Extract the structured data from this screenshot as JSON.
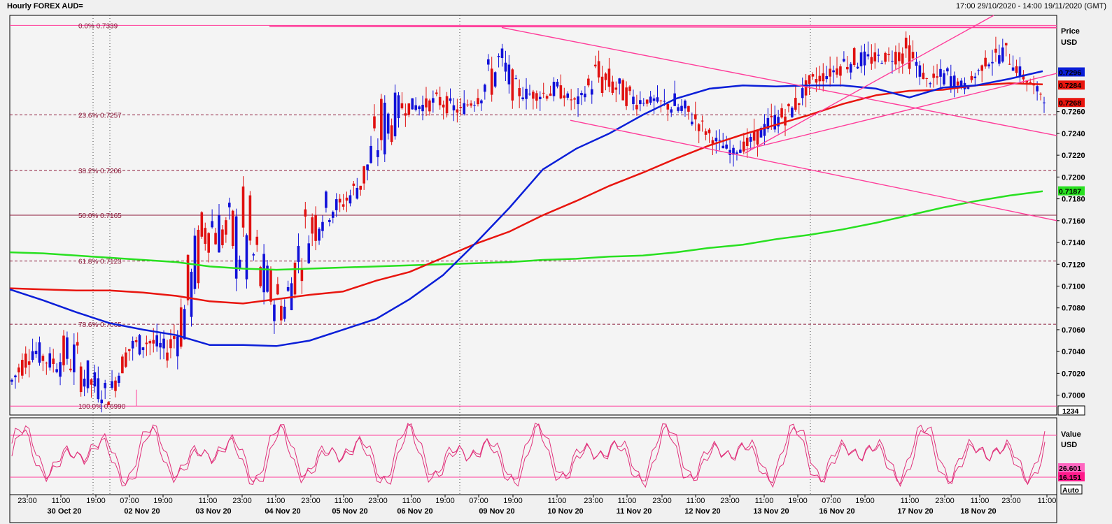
{
  "window": {
    "title": "Hourly FOREX AUD=",
    "range": "17:00 29/10/2020 - 14:00 19/11/2020 (GMT)"
  },
  "price_panel": {
    "header": [
      "Price",
      "USD"
    ]
  },
  "indicator_panel": {
    "header": [
      "Value",
      "USD"
    ]
  },
  "colors": {
    "up": "#1010d8",
    "down": "#e01010",
    "ma_fast": "#0a1ed8",
    "ma_mid": "#e8150e",
    "ma_slow": "#28e020",
    "fib": "#8b1a3a",
    "trend": "#ff3d9a",
    "stoch": "#e0307a"
  },
  "chart_data": [
    {
      "type": "candlestick",
      "ylim": [
        0.6985,
        0.7345
      ],
      "ytick_labels": [
        "0.7000",
        "0.7020",
        "0.7040",
        "0.7060",
        "0.7080",
        "0.7100",
        "0.7120",
        "0.7140",
        "0.7160",
        "0.7180",
        "0.7200",
        "0.7220",
        "0.7240",
        "0.7260"
      ],
      "x_time_labels": [
        "23:00",
        "11:00",
        "19:00",
        "07:00",
        "19:00",
        "11:00",
        "23:00",
        "11:00",
        "23:00",
        "11:00",
        "23:00",
        "11:00",
        "19:00",
        "07:00",
        "19:00",
        "11:00",
        "23:00",
        "11:00",
        "23:00",
        "11:00",
        "23:00",
        "11:00",
        "19:00",
        "07:00",
        "19:00",
        "11:00",
        "23:00",
        "11:00",
        "23:00",
        "11:00"
      ],
      "x_date_labels": [
        "30 Oct 20",
        "02 Nov 20",
        "03 Nov 20",
        "04 Nov 20",
        "05 Nov 20",
        "06 Nov 20",
        "09 Nov 20",
        "10 Nov 20",
        "11 Nov 20",
        "12 Nov 20",
        "13 Nov 20",
        "16 Nov 20",
        "17 Nov 20",
        "18 Nov 20"
      ],
      "fib_levels": [
        {
          "label": "0.0%  0.7339",
          "value": 0.7339
        },
        {
          "label": "23.6%  0.7257",
          "value": 0.7257
        },
        {
          "label": "38.2%  0.7206",
          "value": 0.7206
        },
        {
          "label": "50.0%  0.7165",
          "value": 0.7165
        },
        {
          "label": "61.8%  0.7123",
          "value": 0.7123
        },
        {
          "label": "78.6%  0.7065",
          "value": 0.7065
        },
        {
          "label": "100.0%  0.6990",
          "value": 0.699
        }
      ],
      "value_tags": [
        {
          "text": "0.7296",
          "value": 0.7296,
          "color": "#0a1ed8"
        },
        {
          "text": "0.7284",
          "value": 0.7284,
          "color": "#e8150e"
        },
        {
          "text": "0.7268",
          "value": 0.7268,
          "color": "#e8150e"
        },
        {
          "text": "0.7187",
          "value": 0.7187,
          "color": "#28e020"
        }
      ],
      "close_label": "1234",
      "key_points": [
        [
          0.7025,
          0.7
        ],
        [
          0.7055,
          0.703
        ],
        [
          0.704,
          0.702
        ],
        [
          0.7065,
          0.701
        ],
        [
          0.703,
          0.6995
        ],
        [
          0.701,
          0.699
        ],
        [
          0.7055,
          0.703
        ],
        [
          0.706,
          0.704
        ],
        [
          0.705,
          0.703
        ],
        [
          0.713,
          0.7035
        ],
        [
          0.719,
          0.713
        ],
        [
          0.7175,
          0.712
        ],
        [
          0.7205,
          0.707
        ],
        [
          0.713,
          0.707
        ],
        [
          0.71,
          0.706
        ],
        [
          0.718,
          0.711
        ],
        [
          0.719,
          0.715
        ],
        [
          0.718,
          0.717
        ],
        [
          0.7215,
          0.718
        ],
        [
          0.7285,
          0.72
        ],
        [
          0.7275,
          0.7255
        ],
        [
          0.727,
          0.726
        ],
        [
          0.728,
          0.726
        ],
        [
          0.7265,
          0.7255
        ],
        [
          0.729,
          0.7265
        ],
        [
          0.7333,
          0.727
        ],
        [
          0.7285,
          0.727
        ],
        [
          0.728,
          0.727
        ],
        [
          0.729,
          0.727
        ],
        [
          0.726,
          0.7275
        ],
        [
          0.7315,
          0.727
        ],
        [
          0.7295,
          0.727
        ],
        [
          0.728,
          0.726
        ],
        [
          0.7265,
          0.7275
        ],
        [
          0.728,
          0.725
        ],
        [
          0.7265,
          0.7245
        ],
        [
          0.724,
          0.723
        ],
        [
          0.7225,
          0.722
        ],
        [
          0.724,
          0.7225
        ],
        [
          0.726,
          0.724
        ],
        [
          0.727,
          0.725
        ],
        [
          0.7295,
          0.728
        ],
        [
          0.73,
          0.729
        ],
        [
          0.732,
          0.7295
        ],
        [
          0.7315,
          0.73
        ],
        [
          0.7315,
          0.7305
        ],
        [
          0.733,
          0.73
        ],
        [
          0.729,
          0.7285
        ],
        [
          0.7305,
          0.728
        ],
        [
          0.728,
          0.7285
        ],
        [
          0.731,
          0.73
        ],
        [
          0.7325,
          0.7305
        ],
        [
          0.7295,
          0.7285
        ],
        [
          0.7268,
          0.728
        ]
      ],
      "moving_averages": {
        "fast": [
          0.7097,
          0.7087,
          0.7076,
          0.7066,
          0.706,
          0.7055,
          0.7046,
          0.7046,
          0.7045,
          0.705,
          0.706,
          0.707,
          0.7088,
          0.711,
          0.714,
          0.7172,
          0.7207,
          0.7226,
          0.724,
          0.7257,
          0.7272,
          0.7281,
          0.7284,
          0.7283,
          0.7284,
          0.7284,
          0.7281,
          0.7273,
          0.7282,
          0.7284,
          0.729,
          0.7297
        ],
        "mid": [
          0.7098,
          0.7097,
          0.7096,
          0.7096,
          0.7094,
          0.7091,
          0.7086,
          0.7084,
          0.7088,
          0.7092,
          0.7095,
          0.7105,
          0.7113,
          0.7126,
          0.7139,
          0.715,
          0.7165,
          0.7178,
          0.7192,
          0.7204,
          0.7217,
          0.7229,
          0.7239,
          0.7248,
          0.7257,
          0.7267,
          0.7275,
          0.7279,
          0.728,
          0.7284,
          0.7286,
          0.7285
        ],
        "slow": [
          0.7131,
          0.713,
          0.7128,
          0.7126,
          0.7124,
          0.7122,
          0.7118,
          0.7116,
          0.7115,
          0.7116,
          0.7117,
          0.7118,
          0.7119,
          0.712,
          0.7121,
          0.7122,
          0.7124,
          0.7125,
          0.7127,
          0.7128,
          0.7131,
          0.7135,
          0.7138,
          0.7143,
          0.7147,
          0.7152,
          0.7158,
          0.7165,
          0.7172,
          0.7178,
          0.7183,
          0.7187
        ]
      },
      "trend_lines": [
        {
          "from": [
            "09 Nov 20 07:00",
            0.7337
          ],
          "to": [
            "right_edge",
            0.7238
          ]
        },
        {
          "from": [
            "10 Nov 20 09:00",
            0.7252
          ],
          "to": [
            "right_edge",
            0.716
          ]
        },
        {
          "from": [
            "13 Nov 20 07:00",
            0.7222
          ],
          "to": [
            "17 Nov 20 23:00",
            0.7345
          ]
        },
        {
          "from": [
            "13 Nov 20 07:00",
            0.7225
          ],
          "to": [
            "right_edge",
            0.7295
          ]
        }
      ]
    },
    {
      "type": "line",
      "name": "stochastic",
      "ylim": [
        0,
        100
      ],
      "reference_levels": [
        20,
        80
      ],
      "series": [
        {
          "name": "26.601",
          "last_value": 26.601
        },
        {
          "name": "16.151",
          "last_value": 16.151
        }
      ],
      "scale_mode": "Auto"
    }
  ]
}
